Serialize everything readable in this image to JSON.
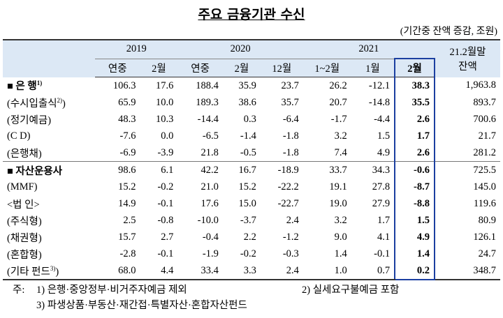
{
  "header": {
    "title": "주요 금융기관 수신",
    "unit": "(기간중 잔액 증감, 조원)"
  },
  "table": {
    "years": [
      {
        "label": "2019",
        "span": 2
      },
      {
        "label": "2020",
        "span": 3
      },
      {
        "label": "2021",
        "span": 3
      }
    ],
    "balance_header": [
      "21.2월말",
      "잔액"
    ],
    "periods": [
      "연중",
      "2월",
      "연중",
      "2월",
      "12월",
      "1~2월",
      "1월",
      "2월"
    ],
    "highlight_column": 7,
    "sections": [
      {
        "rows": [
          {
            "label": "■ 은 행",
            "note": "1)",
            "bold": true,
            "cells": [
              "106.3",
              "17.6",
              "188.4",
              "35.9",
              "23.7",
              "26.2",
              "-12.1",
              "38.3",
              "1,963.8"
            ]
          },
          {
            "label": "(수시입출식",
            "note": "2)",
            "close": ")",
            "cells": [
              "65.9",
              "10.0",
              "189.3",
              "38.6",
              "35.7",
              "20.7",
              "-14.8",
              "35.5",
              "893.7"
            ]
          },
          {
            "label": "(정기예금)",
            "cells": [
              "48.3",
              "10.3",
              "-14.4",
              "0.3",
              "-6.4",
              "-1.7",
              "-4.4",
              "2.6",
              "700.6"
            ]
          },
          {
            "label": "(C D)",
            "cells": [
              "-7.6",
              "0.0",
              "-6.5",
              "-1.4",
              "-1.8",
              "3.2",
              "1.5",
              "1.7",
              "21.7"
            ]
          },
          {
            "label": "(은행채)",
            "cells": [
              "-6.9",
              "-3.9",
              "21.8",
              "-0.5",
              "-1.8",
              "7.4",
              "4.9",
              "2.6",
              "281.2"
            ]
          }
        ]
      },
      {
        "rows": [
          {
            "label": "■ 자산운용사",
            "bold": true,
            "cells": [
              "98.6",
              "6.1",
              "42.2",
              "16.7",
              "-18.9",
              "33.7",
              "34.3",
              "-0.6",
              "725.5"
            ]
          },
          {
            "label": "(MMF)",
            "cells": [
              "15.2",
              "-0.2",
              "21.0",
              "15.2",
              "-22.2",
              "19.1",
              "27.8",
              "-8.7",
              "145.0"
            ]
          },
          {
            "label": "<법 인>",
            "cells": [
              "14.9",
              "-0.1",
              "17.6",
              "15.0",
              "-22.7",
              "19.0",
              "27.9",
              "-8.8",
              "119.6"
            ]
          },
          {
            "label": "(주식형)",
            "cells": [
              "2.5",
              "-0.8",
              "-10.0",
              "-3.7",
              "2.4",
              "3.2",
              "1.7",
              "1.5",
              "80.9"
            ]
          },
          {
            "label": "(채권형)",
            "cells": [
              "15.7",
              "2.7",
              "-0.4",
              "2.2",
              "-1.2",
              "9.0",
              "4.1",
              "4.9",
              "126.1"
            ]
          },
          {
            "label": "(혼합형)",
            "cells": [
              "-2.8",
              "-0.1",
              "-1.9",
              "-0.2",
              "-0.3",
              "1.4",
              "-0.1",
              "1.4",
              "24.7"
            ]
          },
          {
            "label": "(기타 펀드",
            "note": "3)",
            "close": ")",
            "cells": [
              "68.0",
              "4.4",
              "33.4",
              "3.3",
              "2.4",
              "1.0",
              "0.7",
              "0.2",
              "348.7"
            ]
          }
        ]
      }
    ]
  },
  "notes": {
    "prefix": "주:",
    "items": [
      "1) 은행·중앙정부·비거주자예금 제외",
      "2) 실세요구불예금 포함",
      "3) 파생상품·부동산·재간접·특별자산·혼합자산펀드"
    ]
  }
}
